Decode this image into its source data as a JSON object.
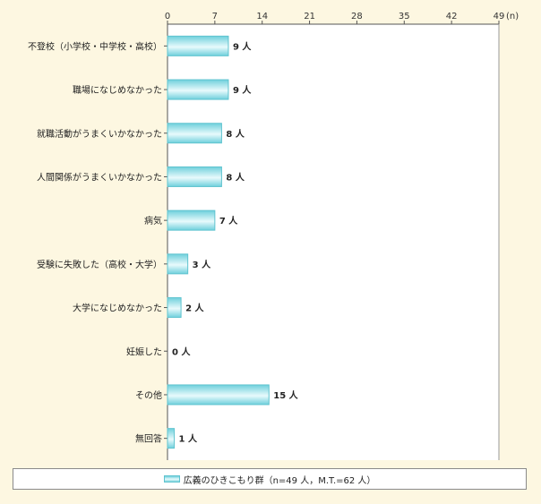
{
  "chart_data": {
    "type": "bar",
    "orientation": "horizontal",
    "unit_label": "(n)",
    "xlim": [
      0,
      49
    ],
    "x_ticks": [
      "0",
      "7",
      "14",
      "21",
      "28",
      "35",
      "42",
      "49"
    ],
    "value_suffix": "人",
    "categories": [
      "不登校（小学校・中学校・高校）",
      "職場になじめなかった",
      "就職活動がうまくいかなかった",
      "人間関係がうまくいかなかった",
      "病気",
      "受験に失敗した（高校・大学）",
      "大学になじめなかった",
      "妊娠した",
      "その他",
      "無回答"
    ],
    "series": [
      {
        "name": "広義のひきこもり群（n=49 人，M.T.=62 人）",
        "values": [
          9,
          9,
          8,
          8,
          7,
          3,
          2,
          0,
          15,
          1
        ]
      }
    ],
    "grid": false,
    "legend_position": "bottom",
    "colors": {
      "bar_edge": "#5fc3cf",
      "bar_dark": "#6fd0dc",
      "bar_light": "#e8fafc",
      "background": "#fdf7e1",
      "plot": "#ffffff"
    }
  }
}
